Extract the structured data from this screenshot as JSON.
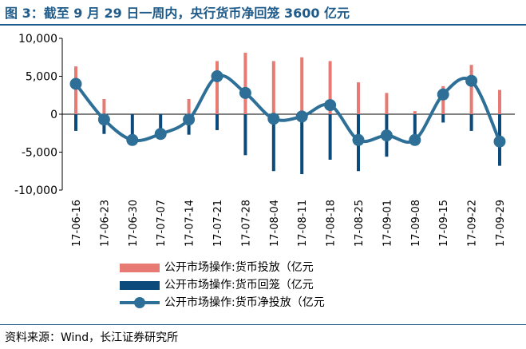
{
  "header": {
    "title": "图 3：截至 9 月 29 日一周内，央行货币净回笼 3600 亿元"
  },
  "source": "资料来源：Wind，长江证券研究所",
  "colors": {
    "injection": "#e77a72",
    "withdrawal": "#0b4a7a",
    "net": "#2d6f97",
    "title": "#1f5b8a"
  },
  "chart_data": {
    "type": "bar+line",
    "title": "截至 9 月 29 日一周内，央行货币净回笼 3600 亿元",
    "categories": [
      "17-06-16",
      "17-06-23",
      "17-06-30",
      "17-07-07",
      "17-07-14",
      "17-07-21",
      "17-07-28",
      "17-08-04",
      "17-08-11",
      "17-08-18",
      "17-08-25",
      "17-09-01",
      "17-09-08",
      "17-09-15",
      "17-09-22",
      "17-09-29"
    ],
    "ylim": [
      -10000,
      10000
    ],
    "yticks": [
      10000,
      5000,
      0,
      -5000,
      -10000
    ],
    "ytick_labels": [
      "10,000",
      "5,000",
      "0",
      "-5,000",
      "-10,000"
    ],
    "series": [
      {
        "name": "公开市场操作:货币投放（亿元",
        "type": "bar",
        "values": [
          6300,
          2000,
          0,
          0,
          2000,
          7000,
          8100,
          7000,
          7500,
          7000,
          4200,
          2800,
          400,
          3700,
          6500,
          3200
        ]
      },
      {
        "name": "公开市场操作:货币回笼（亿元",
        "type": "bar",
        "values": [
          -2200,
          -2600,
          -3300,
          -2600,
          -2700,
          -2100,
          -5400,
          -7500,
          -7900,
          -6000,
          -7500,
          -5600,
          -3600,
          -1100,
          -2200,
          -6800
        ]
      },
      {
        "name": "公开市场操作:货币净投放（亿元",
        "type": "line",
        "values": [
          4000,
          -700,
          -3400,
          -2600,
          -700,
          5000,
          2800,
          -600,
          -300,
          1200,
          -3400,
          -2800,
          -3400,
          2600,
          4400,
          -3600
        ]
      }
    ]
  }
}
